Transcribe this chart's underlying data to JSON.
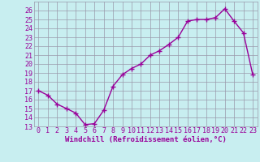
{
  "x": [
    0,
    1,
    2,
    3,
    4,
    5,
    6,
    7,
    8,
    9,
    10,
    11,
    12,
    13,
    14,
    15,
    16,
    17,
    18,
    19,
    20,
    21,
    22,
    23
  ],
  "y": [
    17,
    16.5,
    15.5,
    15,
    14.5,
    13.2,
    13.3,
    14.8,
    17.5,
    18.8,
    19.5,
    20,
    21,
    21.5,
    22.2,
    23,
    24.8,
    25,
    25,
    25.2,
    26.2,
    24.8,
    23.5,
    18.8
  ],
  "line_color": "#990099",
  "marker": "+",
  "markersize": 4,
  "linewidth": 1.0,
  "bg_color": "#c8eef0",
  "grid_color": "#9999aa",
  "xlabel": "Windchill (Refroidissement éolien,°C)",
  "xlabel_color": "#990099",
  "xlabel_fontsize": 6.5,
  "tick_color": "#990099",
  "tick_fontsize": 6,
  "ylim": [
    13,
    27
  ],
  "xlim": [
    -0.5,
    23.5
  ],
  "yticks": [
    13,
    14,
    15,
    16,
    17,
    18,
    19,
    20,
    21,
    22,
    23,
    24,
    25,
    26
  ],
  "xticks": [
    0,
    1,
    2,
    3,
    4,
    5,
    6,
    7,
    8,
    9,
    10,
    11,
    12,
    13,
    14,
    15,
    16,
    17,
    18,
    19,
    20,
    21,
    22,
    23
  ]
}
